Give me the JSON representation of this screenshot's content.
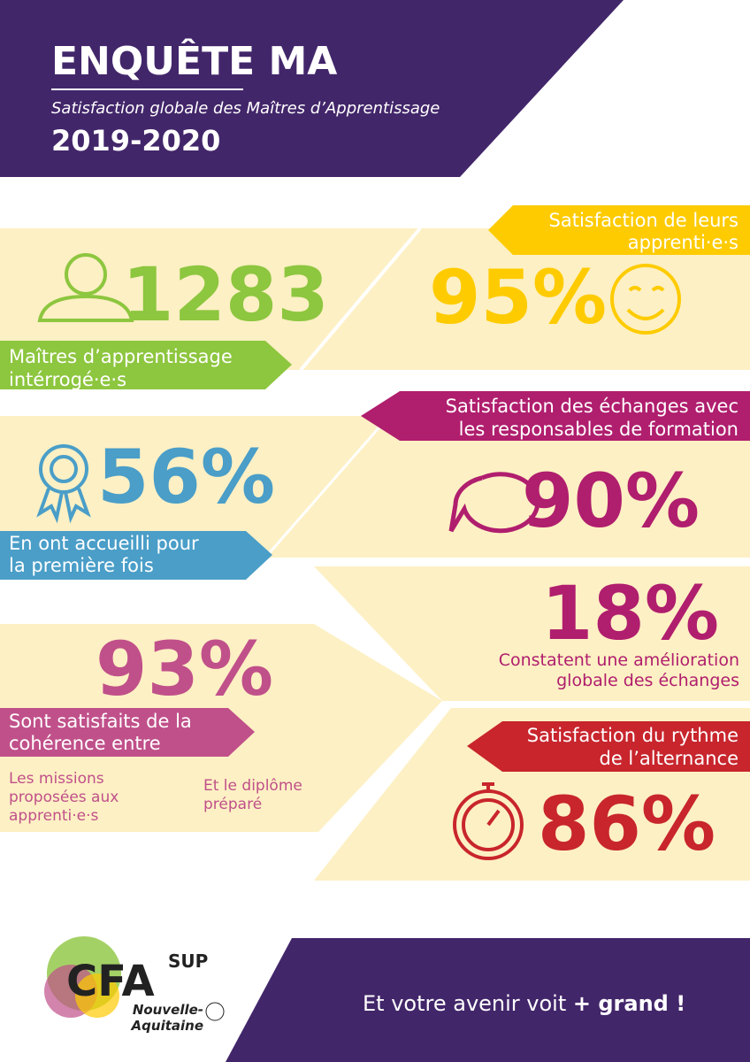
{
  "header": {
    "title": "ENQUÊTE MA",
    "subtitle": "Satisfaction globale des Maîtres d’Apprentissage",
    "years": "2019-2020"
  },
  "stats": [
    {
      "value": "1283",
      "label": [
        "Maîtres d’apprentissage",
        "intérrogé·e·s"
      ]
    },
    {
      "value": "95%",
      "label": [
        "Satisfaction de leurs",
        "apprenti·e·s"
      ]
    },
    {
      "value": "56%",
      "label": [
        "En ont accueilli pour",
        "la première fois"
      ]
    },
    {
      "value": "90%",
      "label": [
        "Satisfaction des échanges avec",
        "les responsables de formation"
      ]
    },
    {
      "value": "18%",
      "label": [
        "Constatent une amélioration",
        "globale des échanges"
      ]
    },
    {
      "value": "93%",
      "label": [
        "Sont satisfaits de la",
        "cohérence entre"
      ],
      "left": [
        "Les missions",
        "proposées aux",
        "apprenti·e·s"
      ],
      "right": [
        "Et le diplôme",
        "préparé"
      ]
    },
    {
      "value": "86%",
      "label": [
        "Satisfaction du rythme",
        "de l’alternance"
      ]
    }
  ],
  "footer": {
    "logo": "CFA",
    "logo_sup": "SUP",
    "region": [
      "Nouvelle-",
      "Aquitaine"
    ],
    "slogan": "Et votre avenir voit",
    "slogan_bold": "+ grand !"
  }
}
